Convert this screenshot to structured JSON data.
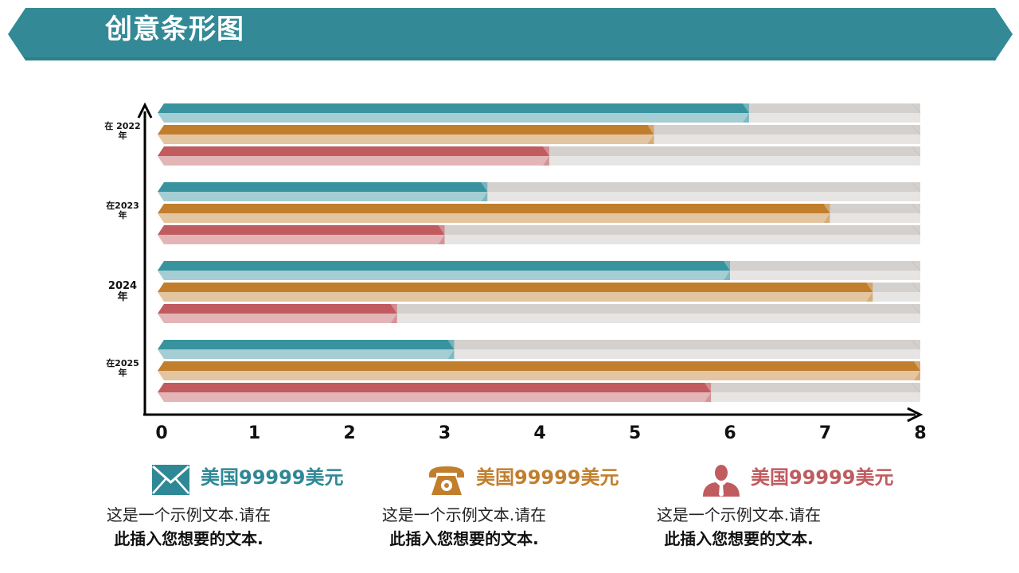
{
  "header": {
    "title": "创意条形图"
  },
  "colors": {
    "banner": "#338A96",
    "teal": "#38939F",
    "orange": "#C17F2E",
    "red": "#C05B5F",
    "track": "#DEDCDA",
    "axis": "#000000"
  },
  "chart_data": {
    "type": "bar",
    "orientation": "horizontal",
    "title": "创意条形图",
    "categories": [
      "在2022年",
      "在2023年",
      "2024年",
      "在2025年"
    ],
    "category_labels": [
      {
        "line1": "在 2022",
        "line2": "年"
      },
      {
        "line1": "在2023",
        "line2": "年"
      },
      {
        "line1": "2024",
        "line2": "年"
      },
      {
        "line1": "在2025",
        "line2": "年"
      }
    ],
    "series": [
      {
        "name": "teal",
        "color": "#38939F",
        "values": [
          6.2,
          3.45,
          6.0,
          3.1
        ]
      },
      {
        "name": "orange",
        "color": "#C17F2E",
        "values": [
          5.2,
          7.05,
          7.5,
          8.0
        ]
      },
      {
        "name": "red",
        "color": "#C05B5F",
        "values": [
          4.1,
          3.0,
          2.5,
          5.8
        ]
      }
    ],
    "xlim": [
      0,
      8
    ],
    "xticks": [
      "0",
      "1",
      "2",
      "3",
      "4",
      "5",
      "6",
      "7",
      "8"
    ],
    "xlabel": "",
    "ylabel": "",
    "legend": "none"
  },
  "footer": {
    "items": [
      {
        "icon": "envelope-icon",
        "color": "#2F8896",
        "heading": "美国99999美元",
        "line1": "这是一个示例文本.请在",
        "line2": "此插入您想要的文本."
      },
      {
        "icon": "phone-icon",
        "color": "#C17F2E",
        "heading": "美国99999美元",
        "line1": "这是一个示例文本.请在",
        "line2": "此插入您想要的文本."
      },
      {
        "icon": "person-icon",
        "color": "#C05B5F",
        "heading": "美国99999美元",
        "line1": "这是一个示例文本.请在",
        "line2": "此插入您想要的文本."
      }
    ]
  }
}
